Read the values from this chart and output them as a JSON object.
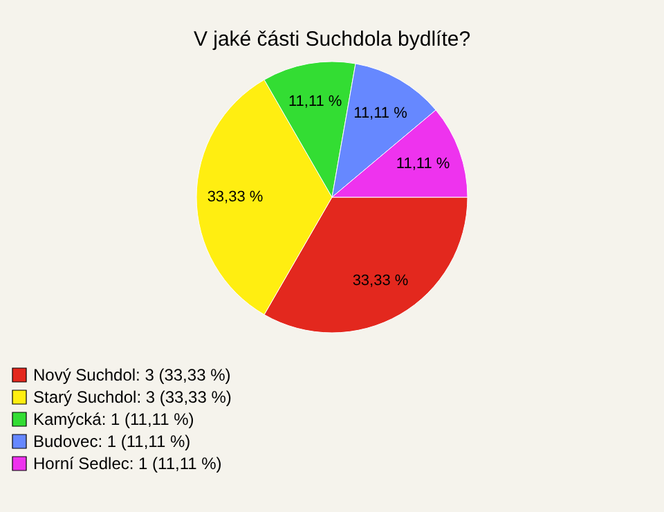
{
  "chart_data": {
    "type": "pie",
    "title": "V jaké části Suchdola bydlíte?",
    "categories": [
      "Nový Suchdol: 3 (33,33 %)",
      "Starý Suchdol: 3 (33,33 %)",
      "Kamýcká: 1 (11,11 %)",
      "Budovec: 1 (11,11 %)",
      "Horní Sedlec: 1 (11,11 %)"
    ],
    "values": [
      33.33,
      33.33,
      11.11,
      11.11,
      11.11
    ],
    "colors": [
      "#e3281e",
      "#ffee11",
      "#33dd33",
      "#6688ff",
      "#ee33ee"
    ],
    "value_labels": [
      "33,33 %",
      "33,33 %",
      "11,11 %",
      "11,11 %",
      "11,11 %"
    ],
    "legend": "bottom left"
  }
}
